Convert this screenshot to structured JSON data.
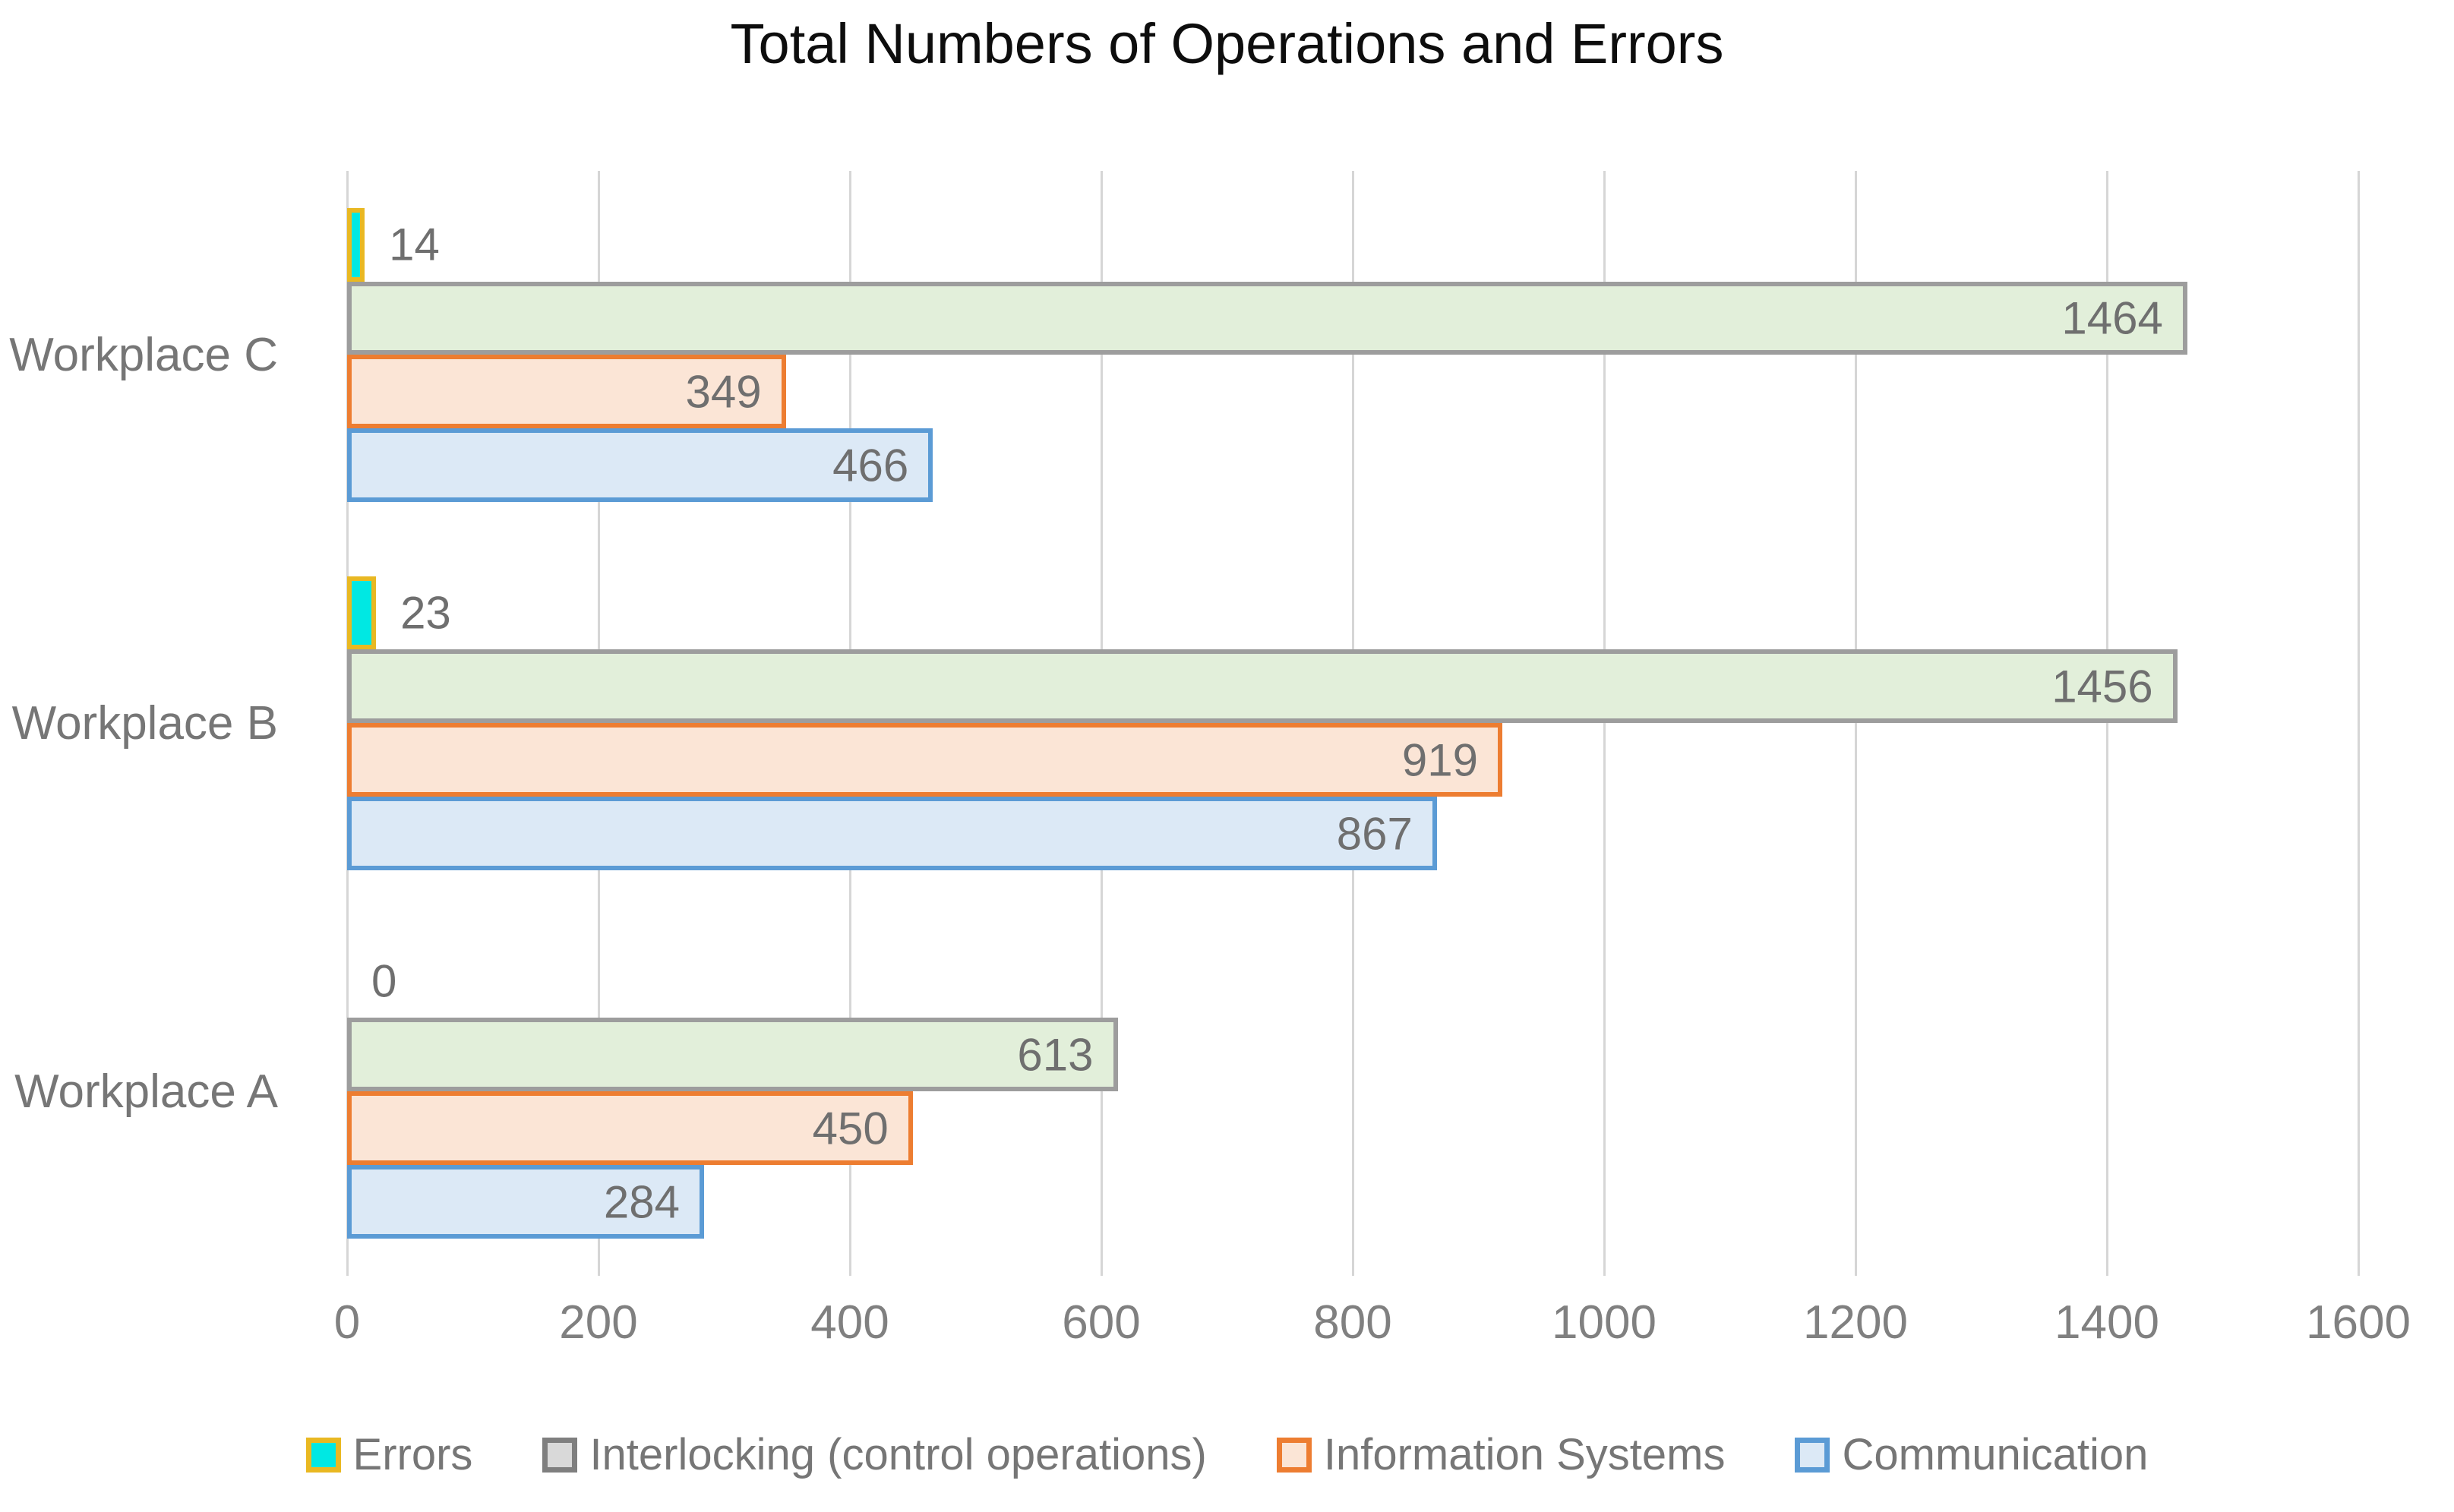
{
  "title": "Total Numbers of Operations and Errors",
  "chart_data": {
    "type": "bar",
    "orientation": "horizontal",
    "title": "Total Numbers of Operations and Errors",
    "categories": [
      "Workplace C",
      "Workplace B",
      "Workplace A"
    ],
    "series": [
      {
        "name": "Errors",
        "fill": "#00E8E3",
        "border": "#E9B822",
        "legend_fill": "#00E8E3",
        "legend_border": "#E9B822",
        "values": [
          14,
          23,
          0
        ]
      },
      {
        "name": "Interlocking (control operations)",
        "fill": "#E2EFDA",
        "border": "#9D9D9D",
        "legend_fill": "#D9D9D9",
        "legend_border": "#7F7F7F",
        "values": [
          1464,
          1456,
          613
        ]
      },
      {
        "name": "Information Systems",
        "fill": "#FBE5D6",
        "border": "#ED7D31",
        "legend_fill": "#FBE5D6",
        "legend_border": "#ED7D31",
        "values": [
          349,
          919,
          450
        ]
      },
      {
        "name": "Communication",
        "fill": "#DCE9F6",
        "border": "#5B9BD5",
        "legend_fill": "#DCE9F6",
        "legend_border": "#5B9BD5",
        "values": [
          466,
          867,
          284
        ]
      }
    ],
    "x_axis": {
      "min": 0,
      "max": 1600,
      "tick_step": 200,
      "ticks": [
        "0",
        "200",
        "400",
        "600",
        "800",
        "1000",
        "1200",
        "1400",
        "1600"
      ]
    },
    "grid": true,
    "legend_position": "bottom",
    "value_labels": "end of bar (inside for large bars, outside for small bars)"
  },
  "colors": {
    "background": "#FFFFFF",
    "title_text": "#0D0D0D",
    "axis_text": "#808080",
    "category_text": "#767676",
    "value_label_text": "#6F6F6F",
    "gridline": "#D6D6D6"
  }
}
